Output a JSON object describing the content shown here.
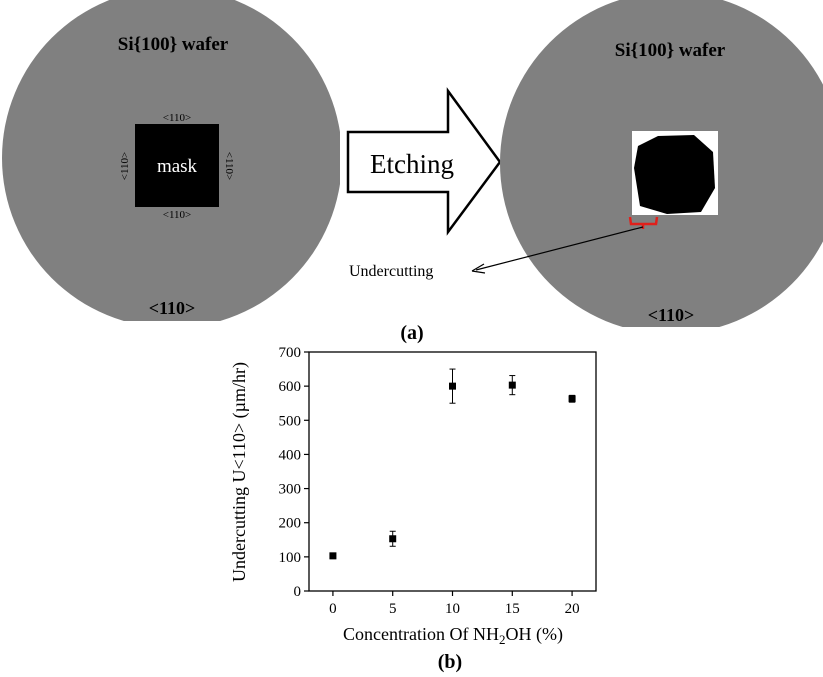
{
  "panel_a": {
    "left_wafer_label": "Si{100} wafer",
    "right_wafer_label": "Si{100} wafer",
    "mask_label": "mask",
    "mask_edge_top": "<110>",
    "mask_edge_bottom": "<110>",
    "mask_edge_left": "<110>",
    "mask_edge_right": "<110>",
    "left_flat_label": "<110>",
    "right_flat_label": "<110>",
    "arrow_label": "Etching",
    "undercut_label": "Undercutting",
    "caption": "(a)",
    "colors": {
      "wafer": "#808080",
      "mask": "#000000",
      "undercut_bracket": "#e0201b"
    }
  },
  "panel_b": {
    "caption": "(b)"
  },
  "chart_data": {
    "type": "scatter",
    "xlabel_prefix": "Concentration Of NH",
    "xlabel_sub": "2",
    "xlabel_suffix": "OH (%)",
    "ylabel": "Undercutting U<110> (µm/hr)",
    "xlim": [
      -2,
      22
    ],
    "ylim": [
      0,
      700
    ],
    "xticks": [
      0,
      5,
      10,
      15,
      20
    ],
    "yticks": [
      0,
      100,
      200,
      300,
      400,
      500,
      600,
      700
    ],
    "grid": false,
    "points": [
      {
        "x": 0,
        "y": 103,
        "err": 8
      },
      {
        "x": 5,
        "y": 153,
        "err": 22
      },
      {
        "x": 10,
        "y": 600,
        "err": 50
      },
      {
        "x": 15,
        "y": 603,
        "err": 28
      },
      {
        "x": 20,
        "y": 563,
        "err": 10
      }
    ]
  }
}
